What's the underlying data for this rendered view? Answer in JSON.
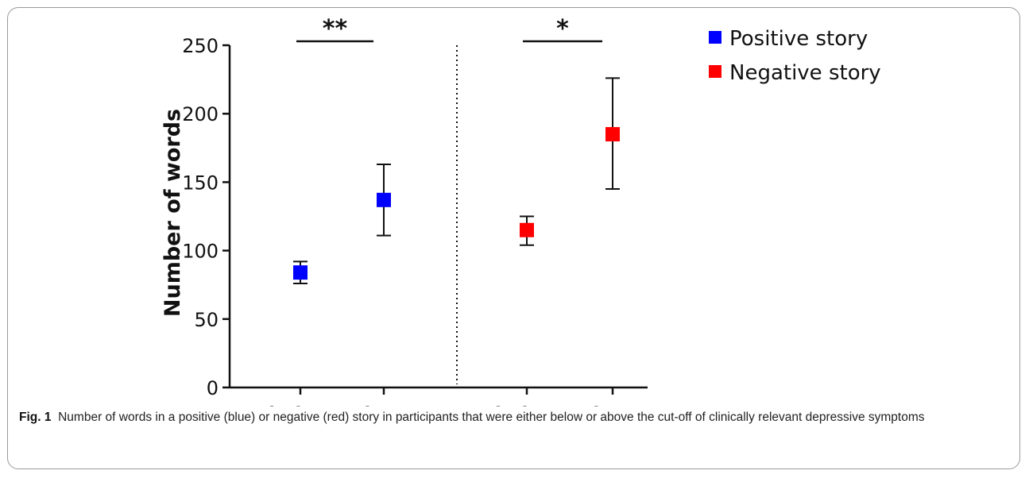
{
  "chart_data": {
    "type": "scatter",
    "ylabel": "Number of words",
    "ylim": [
      0,
      250
    ],
    "yticks": [
      0,
      50,
      100,
      150,
      200,
      250
    ],
    "categories": [
      "below",
      "above",
      "below",
      "above"
    ],
    "series": [
      {
        "name": "Positive story",
        "color": "#0000ff",
        "points": [
          {
            "category": "below",
            "mean": 84,
            "err_low": 76,
            "err_high": 92
          },
          {
            "category": "above",
            "mean": 137,
            "err_low": 111,
            "err_high": 163
          }
        ]
      },
      {
        "name": "Negative story",
        "color": "#ff0000",
        "points": [
          {
            "category": "below",
            "mean": 115,
            "err_low": 104,
            "err_high": 125
          },
          {
            "category": "above",
            "mean": 185,
            "err_low": 145,
            "err_high": 226
          }
        ]
      }
    ],
    "significance": [
      {
        "groups": [
          "below",
          "above"
        ],
        "series": "Positive story",
        "label": "**"
      },
      {
        "groups": [
          "below",
          "above"
        ],
        "series": "Negative story",
        "label": "*"
      }
    ],
    "legend_position": "top-right",
    "grid": false
  },
  "caption": {
    "label": "Fig. 1",
    "text": "Number of words in a positive (blue) or negative (red) story in participants that were either below or above the cut-off of clinically relevant depressive symptoms"
  }
}
